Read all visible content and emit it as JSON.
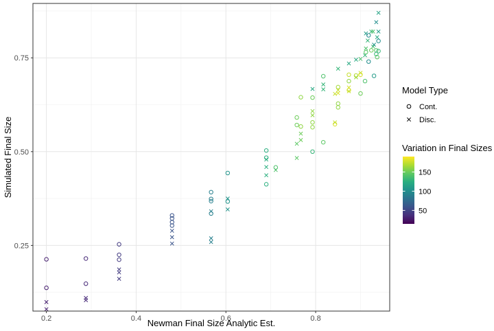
{
  "chart_data": {
    "type": "scatter",
    "title": "",
    "xlabel": "Newman Final Size Analytic Est.",
    "ylabel": "Simulated Final Size",
    "xlim": [
      0.17,
      0.965
    ],
    "ylim": [
      0.075,
      0.895
    ],
    "x_ticks": [
      0.2,
      0.4,
      0.6,
      0.8
    ],
    "x_tick_labels": [
      "0.2",
      "0.4",
      "0.6",
      "0.8"
    ],
    "x_minor": [
      0.3,
      0.5,
      0.7,
      0.9
    ],
    "y_ticks": [
      0.25,
      0.5,
      0.75
    ],
    "y_tick_labels": [
      "0.25",
      "0.50",
      "0.75"
    ],
    "y_minor": [
      0.125,
      0.375,
      0.625,
      0.875
    ],
    "grid": true,
    "legend_position": "right",
    "shape_legend": {
      "title": "Model Type",
      "items": [
        {
          "label": "Cont.",
          "shape": "circle"
        },
        {
          "label": "Disc.",
          "shape": "cross"
        }
      ]
    },
    "color_legend": {
      "title": "Variation in Final Sizes",
      "min": 15,
      "max": 190,
      "ticks": [
        50,
        100,
        150
      ],
      "tick_labels": [
        "50",
        "100",
        "150"
      ],
      "colormap": "viridis"
    },
    "points": [
      {
        "x": 0.2,
        "y": 0.213,
        "type": "Cont.",
        "v": 30
      },
      {
        "x": 0.2,
        "y": 0.137,
        "type": "Cont.",
        "v": 30
      },
      {
        "x": 0.2,
        "y": 0.099,
        "type": "Disc.",
        "v": 30
      },
      {
        "x": 0.2,
        "y": 0.08,
        "type": "Disc.",
        "v": 30
      },
      {
        "x": 0.288,
        "y": 0.215,
        "type": "Cont.",
        "v": 35
      },
      {
        "x": 0.288,
        "y": 0.148,
        "type": "Cont.",
        "v": 35
      },
      {
        "x": 0.288,
        "y": 0.11,
        "type": "Disc.",
        "v": 35
      },
      {
        "x": 0.288,
        "y": 0.104,
        "type": "Disc.",
        "v": 35
      },
      {
        "x": 0.362,
        "y": 0.253,
        "type": "Cont.",
        "v": 45
      },
      {
        "x": 0.362,
        "y": 0.225,
        "type": "Cont.",
        "v": 45
      },
      {
        "x": 0.362,
        "y": 0.212,
        "type": "Cont.",
        "v": 45
      },
      {
        "x": 0.362,
        "y": 0.186,
        "type": "Disc.",
        "v": 45
      },
      {
        "x": 0.362,
        "y": 0.178,
        "type": "Disc.",
        "v": 45
      },
      {
        "x": 0.362,
        "y": 0.161,
        "type": "Disc.",
        "v": 45
      },
      {
        "x": 0.48,
        "y": 0.33,
        "type": "Cont.",
        "v": 60
      },
      {
        "x": 0.48,
        "y": 0.322,
        "type": "Cont.",
        "v": 60
      },
      {
        "x": 0.48,
        "y": 0.312,
        "type": "Cont.",
        "v": 60
      },
      {
        "x": 0.48,
        "y": 0.303,
        "type": "Cont.",
        "v": 60
      },
      {
        "x": 0.48,
        "y": 0.289,
        "type": "Disc.",
        "v": 60
      },
      {
        "x": 0.48,
        "y": 0.272,
        "type": "Disc.",
        "v": 60
      },
      {
        "x": 0.48,
        "y": 0.255,
        "type": "Disc.",
        "v": 60
      },
      {
        "x": 0.567,
        "y": 0.392,
        "type": "Cont.",
        "v": 90
      },
      {
        "x": 0.567,
        "y": 0.374,
        "type": "Cont.",
        "v": 90
      },
      {
        "x": 0.567,
        "y": 0.368,
        "type": "Cont.",
        "v": 90
      },
      {
        "x": 0.567,
        "y": 0.341,
        "type": "Disc.",
        "v": 90
      },
      {
        "x": 0.567,
        "y": 0.335,
        "type": "Cont.",
        "v": 90
      },
      {
        "x": 0.567,
        "y": 0.269,
        "type": "Disc.",
        "v": 90
      },
      {
        "x": 0.567,
        "y": 0.259,
        "type": "Disc.",
        "v": 90
      },
      {
        "x": 0.604,
        "y": 0.443,
        "type": "Cont.",
        "v": 105
      },
      {
        "x": 0.604,
        "y": 0.375,
        "type": "Disc.",
        "v": 105
      },
      {
        "x": 0.604,
        "y": 0.367,
        "type": "Cont.",
        "v": 105
      },
      {
        "x": 0.604,
        "y": 0.346,
        "type": "Disc.",
        "v": 105
      },
      {
        "x": 0.69,
        "y": 0.503,
        "type": "Cont.",
        "v": 125
      },
      {
        "x": 0.69,
        "y": 0.484,
        "type": "Cont.",
        "v": 125
      },
      {
        "x": 0.69,
        "y": 0.479,
        "type": "Disc.",
        "v": 125
      },
      {
        "x": 0.69,
        "y": 0.459,
        "type": "Disc.",
        "v": 125
      },
      {
        "x": 0.69,
        "y": 0.437,
        "type": "Disc.",
        "v": 125
      },
      {
        "x": 0.69,
        "y": 0.413,
        "type": "Cont.",
        "v": 125
      },
      {
        "x": 0.711,
        "y": 0.458,
        "type": "Cont.",
        "v": 140
      },
      {
        "x": 0.711,
        "y": 0.451,
        "type": "Disc.",
        "v": 140
      },
      {
        "x": 0.758,
        "y": 0.591,
        "type": "Cont.",
        "v": 150
      },
      {
        "x": 0.758,
        "y": 0.571,
        "type": "Cont.",
        "v": 150
      },
      {
        "x": 0.758,
        "y": 0.521,
        "type": "Disc.",
        "v": 145
      },
      {
        "x": 0.758,
        "y": 0.483,
        "type": "Disc.",
        "v": 145
      },
      {
        "x": 0.767,
        "y": 0.645,
        "type": "Cont.",
        "v": 160
      },
      {
        "x": 0.767,
        "y": 0.567,
        "type": "Cont.",
        "v": 160
      },
      {
        "x": 0.767,
        "y": 0.548,
        "type": "Disc.",
        "v": 150
      },
      {
        "x": 0.767,
        "y": 0.531,
        "type": "Disc.",
        "v": 150
      },
      {
        "x": 0.793,
        "y": 0.667,
        "type": "Disc.",
        "v": 120
      },
      {
        "x": 0.793,
        "y": 0.644,
        "type": "Cont.",
        "v": 150
      },
      {
        "x": 0.793,
        "y": 0.608,
        "type": "Disc.",
        "v": 160
      },
      {
        "x": 0.793,
        "y": 0.597,
        "type": "Disc.",
        "v": 160
      },
      {
        "x": 0.793,
        "y": 0.578,
        "type": "Cont.",
        "v": 160
      },
      {
        "x": 0.793,
        "y": 0.565,
        "type": "Cont.",
        "v": 160
      },
      {
        "x": 0.793,
        "y": 0.5,
        "type": "Cont.",
        "v": 130
      },
      {
        "x": 0.817,
        "y": 0.701,
        "type": "Cont.",
        "v": 140
      },
      {
        "x": 0.817,
        "y": 0.679,
        "type": "Disc.",
        "v": 130
      },
      {
        "x": 0.817,
        "y": 0.666,
        "type": "Disc.",
        "v": 130
      },
      {
        "x": 0.817,
        "y": 0.525,
        "type": "Cont.",
        "v": 145
      },
      {
        "x": 0.843,
        "y": 0.654,
        "type": "Disc.",
        "v": 175
      },
      {
        "x": 0.843,
        "y": 0.573,
        "type": "Cont.",
        "v": 180
      },
      {
        "x": 0.843,
        "y": 0.578,
        "type": "Disc.",
        "v": 175
      },
      {
        "x": 0.85,
        "y": 0.721,
        "type": "Disc.",
        "v": 130
      },
      {
        "x": 0.85,
        "y": 0.672,
        "type": "Cont.",
        "v": 165
      },
      {
        "x": 0.85,
        "y": 0.664,
        "type": "Disc.",
        "v": 175
      },
      {
        "x": 0.85,
        "y": 0.656,
        "type": "Disc.",
        "v": 180
      },
      {
        "x": 0.85,
        "y": 0.628,
        "type": "Cont.",
        "v": 160
      },
      {
        "x": 0.85,
        "y": 0.618,
        "type": "Cont.",
        "v": 160
      },
      {
        "x": 0.874,
        "y": 0.735,
        "type": "Disc.",
        "v": 120
      },
      {
        "x": 0.874,
        "y": 0.705,
        "type": "Cont.",
        "v": 175
      },
      {
        "x": 0.874,
        "y": 0.688,
        "type": "Cont.",
        "v": 160
      },
      {
        "x": 0.874,
        "y": 0.671,
        "type": "Disc.",
        "v": 180
      },
      {
        "x": 0.874,
        "y": 0.664,
        "type": "Cont.",
        "v": 180
      },
      {
        "x": 0.874,
        "y": 0.661,
        "type": "Disc.",
        "v": 175
      },
      {
        "x": 0.89,
        "y": 0.745,
        "type": "Disc.",
        "v": 120
      },
      {
        "x": 0.89,
        "y": 0.703,
        "type": "Cont.",
        "v": 170
      },
      {
        "x": 0.89,
        "y": 0.698,
        "type": "Disc.",
        "v": 165
      },
      {
        "x": 0.9,
        "y": 0.747,
        "type": "Disc.",
        "v": 140
      },
      {
        "x": 0.9,
        "y": 0.71,
        "type": "Disc.",
        "v": 175
      },
      {
        "x": 0.9,
        "y": 0.705,
        "type": "Cont.",
        "v": 180
      },
      {
        "x": 0.9,
        "y": 0.655,
        "type": "Cont.",
        "v": 150
      },
      {
        "x": 0.91,
        "y": 0.757,
        "type": "Disc.",
        "v": 130
      },
      {
        "x": 0.91,
        "y": 0.688,
        "type": "Cont.",
        "v": 140
      },
      {
        "x": 0.912,
        "y": 0.815,
        "type": "Disc.",
        "v": 110
      },
      {
        "x": 0.912,
        "y": 0.775,
        "type": "Disc.",
        "v": 140
      },
      {
        "x": 0.912,
        "y": 0.765,
        "type": "Cont.",
        "v": 145
      },
      {
        "x": 0.916,
        "y": 0.796,
        "type": "Disc.",
        "v": 130
      },
      {
        "x": 0.918,
        "y": 0.81,
        "type": "Cont.",
        "v": 95
      },
      {
        "x": 0.918,
        "y": 0.74,
        "type": "Cont.",
        "v": 100
      },
      {
        "x": 0.924,
        "y": 0.82,
        "type": "Disc.",
        "v": 130
      },
      {
        "x": 0.924,
        "y": 0.77,
        "type": "Cont.",
        "v": 150
      },
      {
        "x": 0.928,
        "y": 0.82,
        "type": "Disc.",
        "v": 140
      },
      {
        "x": 0.928,
        "y": 0.78,
        "type": "Disc.",
        "v": 140
      },
      {
        "x": 0.93,
        "y": 0.702,
        "type": "Cont.",
        "v": 110
      },
      {
        "x": 0.93,
        "y": 0.785,
        "type": "Disc.",
        "v": 105
      },
      {
        "x": 0.935,
        "y": 0.845,
        "type": "Disc.",
        "v": 100
      },
      {
        "x": 0.935,
        "y": 0.77,
        "type": "Cont.",
        "v": 145
      },
      {
        "x": 0.935,
        "y": 0.76,
        "type": "Cont.",
        "v": 130
      },
      {
        "x": 0.937,
        "y": 0.805,
        "type": "Disc.",
        "v": 120
      },
      {
        "x": 0.937,
        "y": 0.752,
        "type": "Cont.",
        "v": 145
      },
      {
        "x": 0.94,
        "y": 0.87,
        "type": "Disc.",
        "v": 115
      },
      {
        "x": 0.94,
        "y": 0.795,
        "type": "Cont.",
        "v": 100
      },
      {
        "x": 0.94,
        "y": 0.82,
        "type": "Disc.",
        "v": 110
      },
      {
        "x": 0.94,
        "y": 0.768,
        "type": "Cont.",
        "v": 130
      }
    ]
  }
}
